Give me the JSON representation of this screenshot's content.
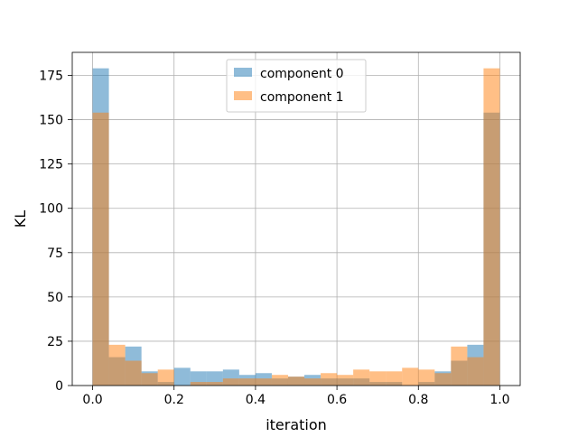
{
  "chart_data": {
    "type": "bar",
    "xlabel": "iteration",
    "ylabel": "KL",
    "xlim": [
      -0.05,
      1.05
    ],
    "ylim": [
      0,
      188
    ],
    "xticks": [
      0.0,
      0.2,
      0.4,
      0.6,
      0.8,
      1.0
    ],
    "xtick_labels": [
      "0.0",
      "0.2",
      "0.4",
      "0.6",
      "0.8",
      "1.0"
    ],
    "yticks": [
      0,
      25,
      50,
      75,
      100,
      125,
      150,
      175
    ],
    "ytick_labels": [
      "0",
      "25",
      "50",
      "75",
      "100",
      "125",
      "150",
      "175"
    ],
    "grid": true,
    "legend_position": "upper center",
    "bins": 25,
    "bin_range": [
      0,
      1
    ],
    "series": [
      {
        "name": "component 0",
        "color": "#1f77b4",
        "opacity": 0.5,
        "values": [
          179,
          16,
          22,
          8,
          2,
          10,
          8,
          8,
          9,
          6,
          7,
          4,
          5,
          6,
          4,
          4,
          4,
          2,
          2,
          0,
          2,
          8,
          14,
          23,
          154
        ]
      },
      {
        "name": "component 1",
        "color": "#ff7f0e",
        "opacity": 0.5,
        "values": [
          154,
          23,
          14,
          7,
          9,
          0,
          2,
          2,
          4,
          4,
          4,
          6,
          5,
          4,
          7,
          6,
          9,
          8,
          8,
          10,
          9,
          7,
          22,
          16,
          179
        ]
      }
    ]
  }
}
